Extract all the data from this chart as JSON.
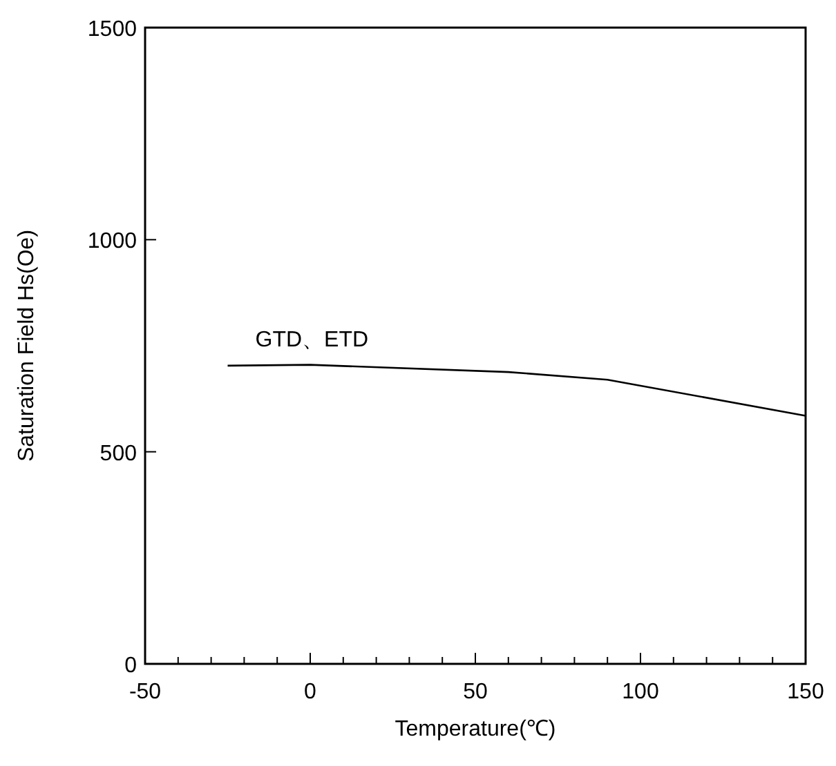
{
  "chart_data": {
    "type": "line",
    "xlabel": "Temperature(℃)",
    "ylabel": "Saturation Field Hs(Oe)",
    "xlim": [
      -50,
      150
    ],
    "ylim": [
      0,
      1500
    ],
    "xticks": [
      -50,
      {
        "value": -40,
        "label": null
      },
      {
        "value": -30,
        "label": null
      },
      {
        "value": -20,
        "label": null
      },
      {
        "value": -10,
        "label": null
      },
      0,
      {
        "value": 10,
        "label": null
      },
      {
        "value": 20,
        "label": null
      },
      {
        "value": 30,
        "label": null
      },
      {
        "value": 40,
        "label": null
      },
      50,
      {
        "value": 60,
        "label": null
      },
      {
        "value": 70,
        "label": null
      },
      {
        "value": 80,
        "label": null
      },
      {
        "value": 90,
        "label": null
      },
      100,
      {
        "value": 110,
        "label": null
      },
      {
        "value": 120,
        "label": null
      },
      {
        "value": 130,
        "label": null
      },
      {
        "value": 140,
        "label": null
      },
      150
    ],
    "yticks": [
      0,
      500,
      1000,
      1500
    ],
    "grid": false,
    "marker": "none",
    "line_style": "solid",
    "series": [
      {
        "name": "GTD、ETD",
        "color": "#000000",
        "x": [
          -25,
          0,
          60,
          90,
          150
        ],
        "values": [
          703,
          705,
          688,
          670,
          585
        ]
      }
    ]
  }
}
